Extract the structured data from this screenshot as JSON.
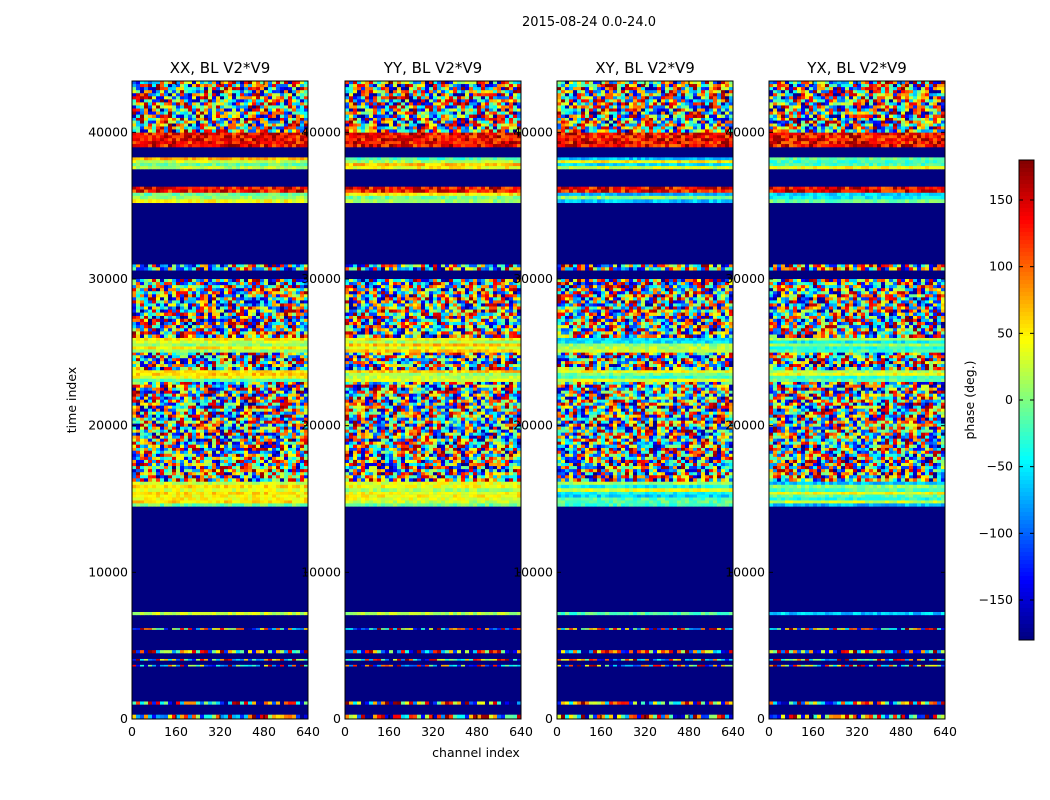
{
  "chart_data": {
    "type": "heatmap",
    "suptitle": "2015-08-24 0.0-24.0",
    "xlabel": "channel index",
    "ylabel": "time index",
    "xlim": [
      0,
      640
    ],
    "ylim": [
      0,
      43500
    ],
    "xticks": [
      0,
      160,
      320,
      480,
      640
    ],
    "yticks": [
      0,
      10000,
      20000,
      30000,
      40000
    ],
    "colorbar": {
      "label": "phase (deg.)",
      "range": [
        -180,
        180
      ],
      "ticks": [
        -150,
        -100,
        -50,
        0,
        50,
        100,
        150
      ],
      "colormap": "jet"
    },
    "panels": [
      {
        "name": "xx",
        "title": "XX, BL V2*V9"
      },
      {
        "name": "yy",
        "title": "YY, BL V2*V9"
      },
      {
        "name": "xy",
        "title": "XY, BL V2*V9"
      },
      {
        "name": "yx",
        "title": "YX, BL V2*V9"
      }
    ],
    "time_segments": [
      {
        "from": 0,
        "to": 300,
        "kind": "noise"
      },
      {
        "from": 300,
        "to": 1000,
        "kind": "flagged"
      },
      {
        "from": 1000,
        "to": 1200,
        "kind": "noise"
      },
      {
        "from": 1200,
        "to": 3600,
        "kind": "flagged"
      },
      {
        "from": 3600,
        "to": 3700,
        "kind": "noise"
      },
      {
        "from": 3700,
        "to": 4000,
        "kind": "flagged"
      },
      {
        "from": 4000,
        "to": 4100,
        "kind": "noise"
      },
      {
        "from": 4100,
        "to": 4500,
        "kind": "flagged"
      },
      {
        "from": 4500,
        "to": 4700,
        "kind": "noise"
      },
      {
        "from": 4700,
        "to": 6100,
        "kind": "flagged"
      },
      {
        "from": 6100,
        "to": 6200,
        "kind": "noise"
      },
      {
        "from": 6200,
        "to": 7100,
        "kind": "flagged"
      },
      {
        "from": 7100,
        "to": 7300,
        "kind": "coherent"
      },
      {
        "from": 7300,
        "to": 14500,
        "kind": "flagged"
      },
      {
        "from": 14500,
        "to": 15500,
        "kind": "coherent"
      },
      {
        "from": 15500,
        "to": 16200,
        "kind": "coherent"
      },
      {
        "from": 16200,
        "to": 18500,
        "kind": "noise"
      },
      {
        "from": 18500,
        "to": 23000,
        "kind": "noise"
      },
      {
        "from": 23000,
        "to": 23800,
        "kind": "coherent"
      },
      {
        "from": 23800,
        "to": 25000,
        "kind": "noise"
      },
      {
        "from": 25000,
        "to": 26000,
        "kind": "coherent"
      },
      {
        "from": 26000,
        "to": 27500,
        "kind": "noise"
      },
      {
        "from": 27500,
        "to": 30000,
        "kind": "noise"
      },
      {
        "from": 30000,
        "to": 30600,
        "kind": "flagged"
      },
      {
        "from": 30600,
        "to": 31000,
        "kind": "noise"
      },
      {
        "from": 31000,
        "to": 35200,
        "kind": "flagged"
      },
      {
        "from": 35200,
        "to": 35900,
        "kind": "coherent"
      },
      {
        "from": 35900,
        "to": 36300,
        "kind": "hot"
      },
      {
        "from": 36300,
        "to": 37500,
        "kind": "flagged"
      },
      {
        "from": 37500,
        "to": 38300,
        "kind": "coherent"
      },
      {
        "from": 38300,
        "to": 39000,
        "kind": "flagged"
      },
      {
        "from": 39000,
        "to": 40000,
        "kind": "hot"
      },
      {
        "from": 40000,
        "to": 41000,
        "kind": "noise"
      },
      {
        "from": 41000,
        "to": 43500,
        "kind": "noise"
      }
    ]
  },
  "colors": {
    "flagged": "#00007f",
    "frame": "#000000"
  }
}
